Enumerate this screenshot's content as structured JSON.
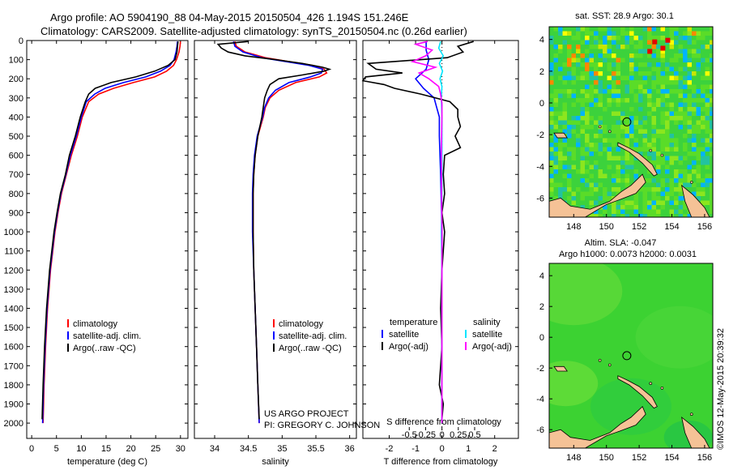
{
  "header": {
    "line1": "Argo profile: AO 5904190_88 04-May-2015 20150504_426 1.194S 151.246E",
    "line2": "Climatology: CARS2009. Satellite-adjusted climatology: synTS_20150504.nc (0.26d earlier)"
  },
  "project": {
    "line1": "US ARGO PROJECT",
    "line2": "PI: GREGORY C. JOHNSON"
  },
  "credit": "©IMOS 12-May-2015 20:39:32",
  "colors": {
    "climatology": "#ff0000",
    "satellite": "#0000ff",
    "argo": "#000000",
    "t_argo_diff": "#000000",
    "s_satellite": "#00e5ff",
    "s_argo_diff": "#ff00ff",
    "land": "#f5c296"
  },
  "chart_data": [
    {
      "id": "temperature",
      "type": "line",
      "xlabel": "temperature (deg C)",
      "ylabel": "",
      "xlim": [
        -1,
        31.5
      ],
      "ylim": [
        2080,
        0
      ],
      "xticks": [
        0,
        5,
        10,
        15,
        20,
        25,
        30
      ],
      "xtick_labels": [
        "0",
        "5",
        "10",
        "15",
        "20",
        "25",
        "30"
      ],
      "yticks": [
        0,
        100,
        200,
        300,
        400,
        500,
        600,
        700,
        800,
        900,
        1000,
        1100,
        1200,
        1300,
        1400,
        1500,
        1600,
        1700,
        1800,
        1900,
        2000
      ],
      "ytick_labels": [
        "0",
        "100",
        "200",
        "300",
        "400",
        "500",
        "600",
        "700",
        "800",
        "900",
        "1000",
        "1100",
        "1200",
        "1300",
        "1400",
        "1500",
        "1600",
        "1700",
        "1800",
        "1900",
        "2000"
      ],
      "legend": [
        "climatology",
        "satellite-adj. clim.",
        "Argo(..raw -QC)"
      ],
      "series": [
        {
          "name": "climatology",
          "color": "#ff0000",
          "depth": [
            5,
            30,
            60,
            100,
            130,
            160,
            190,
            220,
            250,
            280,
            320,
            400,
            500,
            600,
            700,
            800,
            900,
            1000,
            1200,
            1400,
            1600,
            1800,
            2000
          ],
          "values": [
            30.0,
            29.9,
            29.7,
            29.2,
            28.6,
            27.2,
            24.8,
            20.5,
            16.5,
            13.5,
            11.5,
            10.2,
            9.2,
            8.0,
            7.0,
            6.0,
            5.3,
            4.7,
            3.8,
            3.2,
            2.8,
            2.5,
            2.3
          ]
        },
        {
          "name": "satellite-adj. clim.",
          "color": "#0000ff",
          "depth": [
            5,
            30,
            60,
            100,
            130,
            160,
            190,
            220,
            250,
            280,
            320,
            400,
            500,
            600,
            700,
            800,
            900,
            1000,
            1200,
            1400,
            1600,
            1800,
            2000
          ],
          "values": [
            29.4,
            29.3,
            29.1,
            28.7,
            27.9,
            26.0,
            23.0,
            18.5,
            14.8,
            12.7,
            11.0,
            10.0,
            9.0,
            7.8,
            6.9,
            5.9,
            5.2,
            4.6,
            3.7,
            3.1,
            2.7,
            2.4,
            2.2
          ]
        },
        {
          "name": "Argo(..raw -QC)",
          "color": "#000000",
          "depth": [
            5,
            30,
            60,
            100,
            130,
            160,
            190,
            220,
            250,
            280,
            320,
            400,
            500,
            600,
            700,
            800,
            900,
            1000,
            1200,
            1400,
            1600,
            1800,
            1980
          ],
          "values": [
            29.5,
            29.4,
            29.3,
            28.9,
            27.5,
            24.8,
            21.0,
            16.0,
            12.8,
            11.5,
            10.8,
            9.8,
            8.8,
            7.6,
            6.8,
            5.8,
            5.1,
            4.5,
            3.6,
            3.0,
            2.6,
            2.3,
            2.1
          ]
        }
      ]
    },
    {
      "id": "salinity",
      "type": "line",
      "xlabel": "salinity",
      "ylabel": "",
      "xlim": [
        33.7,
        36.1
      ],
      "ylim": [
        2080,
        0
      ],
      "xticks": [
        34,
        34.5,
        35,
        35.5,
        36
      ],
      "xtick_labels": [
        "34",
        "34.5",
        "35",
        "35.5",
        "36"
      ],
      "legend": [
        "climatology",
        "satellite-adj. clim.",
        "Argo(..raw -QC)"
      ],
      "series": [
        {
          "name": "climatology",
          "color": "#ff0000",
          "depth": [
            5,
            30,
            60,
            90,
            110,
            130,
            150,
            170,
            190,
            220,
            260,
            300,
            350,
            400,
            500,
            600,
            700,
            800,
            900,
            1000,
            1200,
            1400,
            1600,
            1800,
            2000
          ],
          "values": [
            34.3,
            34.32,
            34.45,
            34.75,
            35.1,
            35.45,
            35.62,
            35.66,
            35.55,
            35.2,
            34.95,
            34.82,
            34.75,
            34.72,
            34.64,
            34.6,
            34.58,
            34.57,
            34.57,
            34.57,
            34.58,
            34.6,
            34.62,
            34.64,
            34.66
          ]
        },
        {
          "name": "satellite-adj. clim.",
          "color": "#0000ff",
          "depth": [
            5,
            30,
            60,
            90,
            110,
            130,
            150,
            170,
            190,
            220,
            260,
            300,
            350,
            400,
            500,
            600,
            700,
            800,
            900,
            1000,
            1200,
            1400,
            1600,
            1800,
            2000
          ],
          "values": [
            34.28,
            34.3,
            34.42,
            34.7,
            35.05,
            35.4,
            35.6,
            35.58,
            35.42,
            35.1,
            34.9,
            34.8,
            34.74,
            34.71,
            34.63,
            34.59,
            34.57,
            34.56,
            34.56,
            34.56,
            34.58,
            34.6,
            34.62,
            34.64,
            34.66
          ]
        },
        {
          "name": "Argo(..raw -QC)",
          "color": "#000000",
          "depth": [
            5,
            20,
            40,
            60,
            80,
            100,
            120,
            140,
            150,
            160,
            180,
            200,
            230,
            260,
            300,
            350,
            400,
            500,
            600,
            700,
            800,
            900,
            1000,
            1200,
            1400,
            1600,
            1800,
            1980
          ],
          "values": [
            34.5,
            34.05,
            34.1,
            34.2,
            34.45,
            34.9,
            35.3,
            35.6,
            35.7,
            35.62,
            35.3,
            34.95,
            34.82,
            34.78,
            34.74,
            34.72,
            34.7,
            34.64,
            34.6,
            34.58,
            34.57,
            34.57,
            34.57,
            34.58,
            34.6,
            34.62,
            34.64,
            34.66
          ]
        }
      ]
    },
    {
      "id": "difference",
      "type": "line",
      "xlabel": "T difference from climatology",
      "ylabel": "",
      "xlim": [
        -3.0,
        2.9
      ],
      "ylim": [
        2080,
        0
      ],
      "xticks": [
        -2,
        -1,
        0,
        1,
        2
      ],
      "xtick_labels": [
        "-2",
        "-1",
        "0",
        "1",
        "2"
      ],
      "top_axis_label": "S difference from climatology",
      "top_ticks": [
        -0.5,
        -0.25,
        0,
        0.25,
        0.5
      ],
      "top_tick_labels": [
        "-0.5",
        "-0.25",
        "0",
        "0.25",
        "0.5"
      ],
      "legend_temperature": "temperature",
      "legend_salinity": "salinity",
      "legend": [
        "satellite",
        "Argo(-adj)",
        "satellite",
        "Argo(-adj)"
      ],
      "series": [
        {
          "name": "T satellite",
          "color": "#0000ff",
          "depth": [
            5,
            50,
            100,
            150,
            200,
            250,
            300,
            350,
            400,
            500,
            700,
            1000,
            1500,
            2000
          ],
          "values": [
            -0.6,
            -0.6,
            -0.5,
            -0.6,
            -1.0,
            -0.7,
            -0.3,
            -0.2,
            -0.1,
            -0.1,
            -0.05,
            0.0,
            0.0,
            0.0
          ]
        },
        {
          "name": "T Argo(-adj)",
          "color": "#000000",
          "depth": [
            5,
            30,
            60,
            90,
            120,
            150,
            170,
            190,
            210,
            230,
            250,
            280,
            320,
            360,
            400,
            450,
            500,
            560,
            600,
            700,
            800,
            900,
            1000,
            1200,
            1400,
            1600,
            1800,
            1900,
            1980
          ],
          "values": [
            1.2,
            0.6,
            0.8,
            0.2,
            -2.8,
            -2.5,
            -1.5,
            -2.9,
            -3.0,
            -2.2,
            -1.8,
            -0.8,
            0.3,
            0.6,
            0.6,
            0.7,
            0.5,
            0.7,
            0.1,
            0.05,
            0.1,
            0.0,
            0.1,
            0.0,
            -0.05,
            0.0,
            -0.1,
            0.05,
            0.0
          ]
        },
        {
          "name": "S satellite",
          "color": "#00e5ff",
          "depth": [
            5,
            40,
            80,
            120,
            160,
            200,
            240,
            300,
            400,
            600,
            800,
            1000,
            1200,
            1500,
            1800,
            2000
          ],
          "values": [
            -0.02,
            -0.05,
            0.02,
            -0.04,
            0.01,
            -0.03,
            0.0,
            -0.01,
            0.0,
            0.0,
            0.0,
            -0.01,
            0.0,
            0.0,
            0.0,
            0.0
          ]
        },
        {
          "name": "S Argo(-adj)",
          "color": "#ff00ff",
          "depth": [
            5,
            20,
            50,
            80,
            110,
            140,
            170,
            200,
            240,
            280,
            330,
            400,
            600,
            1000,
            1300,
            1400,
            2000
          ],
          "values": [
            -0.22,
            -0.4,
            -0.15,
            -0.25,
            -0.45,
            -0.1,
            -0.35,
            -0.2,
            -0.05,
            -0.02,
            0.0,
            0.0,
            -0.01,
            0.0,
            0.0,
            0.0,
            0.0
          ]
        }
      ]
    },
    {
      "id": "sst-map",
      "type": "heatmap",
      "title": "sat. SST: 28.9 Argo: 30.1",
      "xlim": [
        146.5,
        156.5
      ],
      "ylim": [
        -7.2,
        4.8
      ],
      "xticks": [
        148,
        150,
        152,
        154,
        156
      ],
      "xtick_labels": [
        "148",
        "150",
        "152",
        "154",
        "156"
      ],
      "yticks": [
        -6,
        -4,
        -2,
        0,
        2,
        4
      ],
      "ytick_labels": [
        "-6",
        "-4",
        "-2",
        "0",
        "2",
        "4"
      ],
      "argo_position": [
        151.246,
        -1.194
      ]
    },
    {
      "id": "sla-map",
      "type": "heatmap",
      "title_line1": "Altim. SLA: -0.047",
      "title_line2": "Argo h1000: 0.0073 h2000: 0.0031",
      "xlim": [
        146.5,
        156.5
      ],
      "ylim": [
        -7.2,
        4.8
      ],
      "xticks": [
        148,
        150,
        152,
        154,
        156
      ],
      "xtick_labels": [
        "148",
        "150",
        "152",
        "154",
        "156"
      ],
      "yticks": [
        -6,
        -4,
        -2,
        0,
        2,
        4
      ],
      "ytick_labels": [
        "-6",
        "-4",
        "-2",
        "0",
        "2",
        "4"
      ],
      "argo_position": [
        151.246,
        -1.194
      ]
    }
  ]
}
